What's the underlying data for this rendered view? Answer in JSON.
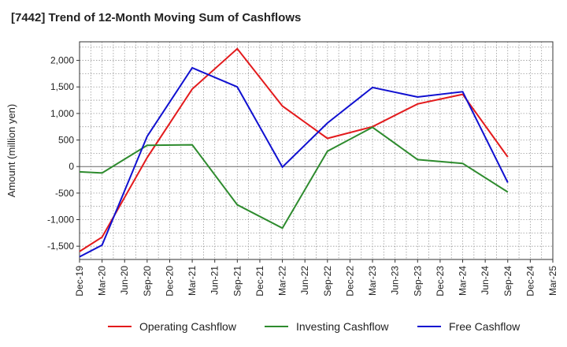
{
  "chart_data": {
    "type": "line",
    "title": "[7442]  Trend of 12-Month Moving Sum of Cashflows",
    "xlabel": "",
    "ylabel": "Amount (million yen)",
    "ylim": [
      -1750,
      2350
    ],
    "yticks": [
      -1500,
      -1000,
      -500,
      0,
      500,
      1000,
      1500,
      2000
    ],
    "ytick_labels": [
      "-1,500",
      "-1,000",
      "-500",
      "0",
      "500",
      "1,000",
      "1,500",
      "2,000"
    ],
    "categories": [
      "Dec-19",
      "Mar-20",
      "Jun-20",
      "Sep-20",
      "Dec-20",
      "Mar-21",
      "Jun-21",
      "Sep-21",
      "Dec-21",
      "Mar-22",
      "Jun-22",
      "Sep-22",
      "Dec-22",
      "Mar-23",
      "Jun-23",
      "Sep-23",
      "Dec-23",
      "Mar-24",
      "Jun-24",
      "Sep-24",
      "Dec-24",
      "Mar-25"
    ],
    "grid": true,
    "legend_position": "bottom",
    "series": [
      {
        "name": "Operating Cashflow",
        "color": "#e31a1c",
        "values": [
          -1600,
          -1330,
          null,
          170,
          null,
          1460,
          null,
          2220,
          null,
          1140,
          null,
          530,
          null,
          750,
          null,
          1180,
          null,
          1360,
          null,
          180,
          null,
          null
        ]
      },
      {
        "name": "Investing Cashflow",
        "color": "#2e8b2e",
        "values": [
          -100,
          -120,
          null,
          400,
          null,
          410,
          null,
          -720,
          null,
          -1160,
          null,
          290,
          null,
          740,
          null,
          130,
          null,
          60,
          null,
          -480,
          null,
          null
        ]
      },
      {
        "name": "Free Cashflow",
        "color": "#1010d0",
        "values": [
          -1700,
          -1480,
          null,
          570,
          null,
          1860,
          null,
          1500,
          null,
          -10,
          null,
          820,
          null,
          1490,
          null,
          1310,
          null,
          1410,
          null,
          -300,
          null,
          null
        ]
      }
    ]
  }
}
